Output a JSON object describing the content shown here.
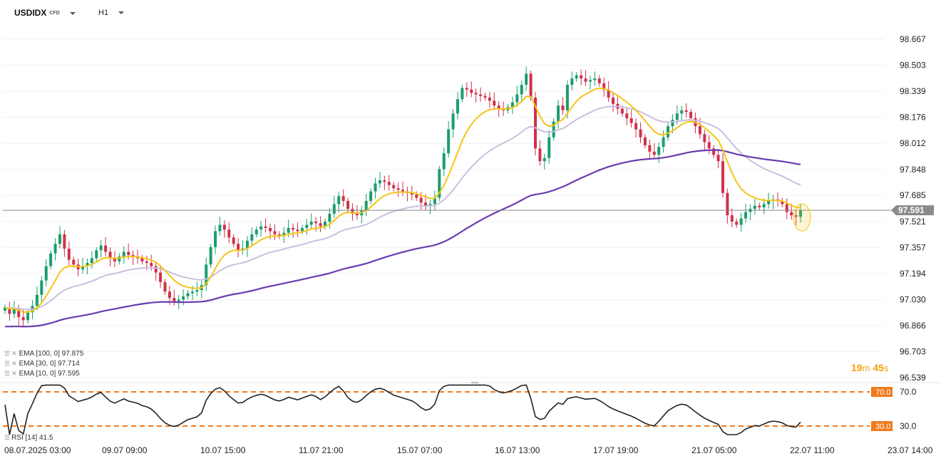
{
  "header": {
    "symbol": "USDIDX",
    "symbol_tag": "CFD",
    "timeframe": "H1"
  },
  "colors": {
    "up": "#1a9e6b",
    "down": "#d0314a",
    "ema10": "#f5c518",
    "ema30": "#c9c0de",
    "ema100": "#6a3bb0",
    "rsi": "#222222",
    "rsi_levels": "#f07b1c",
    "price_line": "#888888",
    "timer": "#f59e0b"
  },
  "indicators": {
    "ema100": {
      "label": "EMA [100, 0]",
      "value": "97.875"
    },
    "ema30": {
      "label": "EMA [30, 0]",
      "value": "97.714"
    },
    "ema10": {
      "label": "EMA [10, 0]",
      "value": "97.595"
    },
    "rsi": {
      "label": "RSI [14]",
      "value": "41.5"
    }
  },
  "timer": {
    "minutes": "19",
    "m": "m",
    "seconds": "45",
    "s": "s"
  },
  "chart_data": {
    "type": "candlestick",
    "y_ticks": [
      "98.667",
      "98.503",
      "98.339",
      "98.176",
      "98.012",
      "97.848",
      "97.685",
      "97.521",
      "97.357",
      "97.194",
      "97.030",
      "96.866",
      "96.703",
      "96.539"
    ],
    "ylim": [
      96.539,
      98.667
    ],
    "last_price": "97.591",
    "x_ticks": [
      "08.07.2025 03:00",
      "09.07 09:00",
      "10.07 15:00",
      "11.07 21:00",
      "15.07 07:00",
      "16.07 13:00",
      "17.07 19:00",
      "21.07 05:00",
      "22.07 11:00",
      "23.07 14:00"
    ],
    "closes": [
      96.98,
      96.94,
      96.97,
      96.92,
      96.9,
      96.95,
      96.99,
      97.06,
      97.15,
      97.24,
      97.32,
      97.38,
      97.44,
      97.35,
      97.28,
      97.25,
      97.22,
      97.24,
      97.26,
      97.29,
      97.34,
      97.37,
      97.33,
      97.29,
      97.27,
      97.3,
      97.33,
      97.31,
      97.3,
      97.29,
      97.27,
      97.26,
      97.24,
      97.2,
      97.14,
      97.08,
      97.04,
      97.02,
      97.03,
      97.05,
      97.07,
      97.08,
      97.09,
      97.12,
      97.25,
      97.36,
      97.46,
      97.5,
      97.47,
      97.42,
      97.38,
      97.34,
      97.35,
      97.4,
      97.44,
      97.47,
      97.49,
      97.48,
      97.46,
      97.44,
      97.43,
      97.45,
      97.48,
      97.47,
      97.46,
      97.48,
      97.5,
      97.52,
      97.51,
      97.49,
      97.52,
      97.57,
      97.63,
      97.68,
      97.65,
      97.6,
      97.57,
      97.56,
      97.59,
      97.65,
      97.71,
      97.76,
      97.78,
      97.77,
      97.75,
      97.73,
      97.72,
      97.71,
      97.7,
      97.69,
      97.67,
      97.64,
      97.62,
      97.63,
      97.67,
      97.85,
      97.95,
      98.1,
      98.2,
      98.29,
      98.36,
      98.35,
      98.33,
      98.32,
      98.31,
      98.3,
      98.28,
      98.25,
      98.23,
      98.22,
      98.24,
      98.27,
      98.32,
      98.38,
      98.45,
      98.3,
      97.98,
      97.9,
      97.92,
      98.05,
      98.15,
      98.25,
      98.22,
      98.38,
      98.42,
      98.44,
      98.42,
      98.4,
      98.41,
      98.42,
      98.39,
      98.35,
      98.3,
      98.26,
      98.23,
      98.2,
      98.17,
      98.14,
      98.1,
      98.05,
      98.0,
      97.96,
      97.94,
      97.99,
      98.05,
      98.12,
      98.16,
      98.2,
      98.22,
      98.21,
      98.17,
      98.12,
      98.07,
      98.02,
      97.98,
      97.94,
      97.9,
      97.7,
      97.56,
      97.52,
      97.5,
      97.54,
      97.58,
      97.6,
      97.62,
      97.61,
      97.63,
      97.65,
      97.66,
      97.65,
      97.63,
      97.58,
      97.56,
      97.55,
      97.59
    ],
    "rsi": {
      "levels": [
        70.0,
        30.0
      ],
      "level_labels": [
        "70.0",
        "30.0"
      ],
      "tick_labels": [
        "70.0",
        "30.0"
      ],
      "value_label": "41.5"
    }
  }
}
